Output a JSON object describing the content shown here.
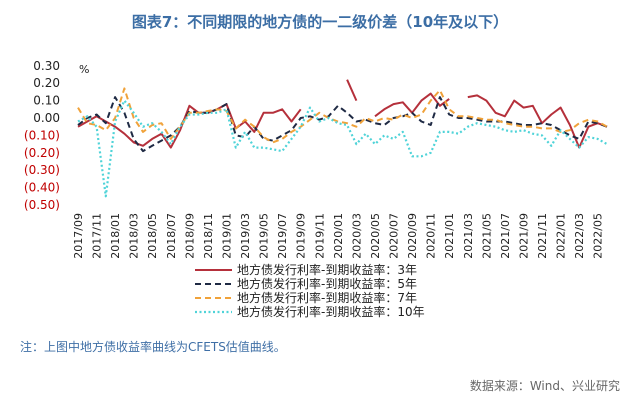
{
  "note": "注：上图中地方债收益率曲线为CFETS估值曲线。",
  "source": "数据来源：Wind、兴业研究",
  "colors": {
    "tick_positive": "#222222",
    "tick_negative": "#c00000"
  },
  "chart_data": {
    "type": "line",
    "title": "图表7：不同期限的地方债的一二级价差（10年及以下）",
    "unit": "%",
    "ylim": [
      -0.5,
      0.3
    ],
    "y_ticks": [
      0.3,
      0.2,
      0.1,
      0.0,
      -0.1,
      -0.2,
      -0.3,
      -0.4,
      -0.5
    ],
    "y_tick_labels": [
      "0.30",
      "0.20",
      "0.10",
      "0.00",
      "(0.10)",
      "(0.20)",
      "(0.30)",
      "(0.40)",
      "(0.50)"
    ],
    "grid": false,
    "legend": "bottom",
    "x": [
      "2017/09",
      "2017/10",
      "2017/11",
      "2017/12",
      "2018/01",
      "2018/02",
      "2018/03",
      "2018/04",
      "2018/05",
      "2018/06",
      "2018/07",
      "2018/08",
      "2018/09",
      "2018/10",
      "2018/11",
      "2018/12",
      "2019/01",
      "2019/02",
      "2019/03",
      "2019/04",
      "2019/05",
      "2019/06",
      "2019/07",
      "2019/08",
      "2019/09",
      "2019/10",
      "2019/11",
      "2019/12",
      "2020/01",
      "2020/02",
      "2020/03",
      "2020/04",
      "2020/05",
      "2020/06",
      "2020/07",
      "2020/08",
      "2020/09",
      "2020/10",
      "2020/11",
      "2020/12",
      "2021/01",
      "2021/02",
      "2021/03",
      "2021/04",
      "2021/05",
      "2021/06",
      "2021/07",
      "2021/08",
      "2021/09",
      "2021/10",
      "2021/11",
      "2021/12",
      "2022/01",
      "2022/02",
      "2022/03",
      "2022/04",
      "2022/05",
      "2022/06"
    ],
    "x_tick_labels": [
      "2017/09",
      "2017/11",
      "2018/01",
      "2018/03",
      "2018/05",
      "2018/07",
      "2018/09",
      "2018/11",
      "2019/01",
      "2019/03",
      "2019/05",
      "2019/07",
      "2019/09",
      "2019/11",
      "2020/01",
      "2020/03",
      "2020/05",
      "2020/07",
      "2020/09",
      "2020/11",
      "2021/01",
      "2021/03",
      "2021/05",
      "2021/07",
      "2021/09",
      "2021/11",
      "2022/01",
      "2022/03",
      "2022/05"
    ],
    "series": [
      {
        "name": "地方债发行利率-到期收益率：3年",
        "color": "#b5303b",
        "style": "solid",
        "values": [
          -0.05,
          -0.02,
          0.01,
          -0.02,
          -0.05,
          -0.09,
          -0.14,
          -0.16,
          -0.12,
          -0.09,
          -0.17,
          -0.07,
          0.07,
          0.03,
          0.03,
          0.05,
          0.08,
          -0.06,
          -0.02,
          -0.08,
          0.03,
          0.03,
          0.05,
          -0.02,
          0.05,
          null,
          null,
          null,
          null,
          0.22,
          0.1,
          null,
          0.01,
          0.05,
          0.08,
          0.09,
          0.03,
          0.1,
          0.14,
          0.07,
          0.11,
          null,
          0.12,
          0.13,
          0.1,
          0.03,
          0.01,
          0.1,
          0.06,
          0.07,
          -0.03,
          0.02,
          0.06,
          -0.04,
          -0.17,
          -0.05,
          -0.03,
          -0.05
        ]
      },
      {
        "name": "地方债发行利率-到期收益率：5年",
        "color": "#1f2a44",
        "style": "dashed",
        "values": [
          -0.04,
          0.0,
          0.02,
          -0.03,
          0.12,
          0.03,
          -0.12,
          -0.19,
          -0.16,
          -0.13,
          -0.1,
          -0.05,
          0.04,
          0.03,
          0.03,
          0.05,
          0.08,
          -0.1,
          -0.11,
          -0.05,
          -0.12,
          -0.13,
          -0.1,
          -0.07,
          0.0,
          0.01,
          -0.01,
          0.01,
          0.07,
          0.03,
          -0.02,
          -0.01,
          -0.03,
          -0.04,
          0.0,
          0.01,
          0.03,
          -0.02,
          -0.04,
          0.12,
          0.02,
          0.0,
          0.0,
          -0.01,
          -0.02,
          -0.02,
          -0.02,
          -0.03,
          -0.04,
          -0.04,
          -0.03,
          -0.04,
          -0.07,
          -0.1,
          -0.12,
          -0.02,
          -0.03,
          -0.05
        ]
      },
      {
        "name": "地方债发行利率-到期收益率：7年",
        "color": "#f0a23a",
        "style": "dashed",
        "values": [
          0.06,
          -0.03,
          -0.04,
          -0.07,
          0.0,
          0.17,
          0.0,
          -0.08,
          -0.04,
          -0.03,
          -0.12,
          -0.05,
          0.03,
          0.03,
          0.04,
          0.05,
          0.04,
          -0.06,
          -0.01,
          -0.05,
          -0.11,
          -0.14,
          -0.12,
          -0.08,
          -0.05,
          -0.01,
          0.03,
          0.0,
          -0.02,
          -0.03,
          -0.05,
          0.0,
          -0.02,
          0.0,
          -0.01,
          0.02,
          0.0,
          0.02,
          0.1,
          0.16,
          0.05,
          0.01,
          0.01,
          0.0,
          -0.01,
          -0.01,
          -0.03,
          -0.04,
          -0.05,
          -0.05,
          -0.06,
          -0.06,
          -0.08,
          -0.07,
          -0.03,
          -0.01,
          -0.02,
          -0.05
        ]
      },
      {
        "name": "地方债发行利率-到期收益率：10年",
        "color": "#4fd3d8",
        "style": "dotted",
        "values": [
          -0.02,
          0.01,
          -0.05,
          -0.45,
          -0.02,
          0.1,
          0.03,
          -0.05,
          -0.03,
          -0.08,
          -0.15,
          -0.05,
          0.02,
          0.02,
          0.03,
          0.03,
          0.05,
          -0.17,
          -0.08,
          -0.17,
          -0.17,
          -0.18,
          -0.19,
          -0.12,
          -0.05,
          0.06,
          -0.02,
          0.0,
          -0.03,
          -0.04,
          -0.15,
          -0.09,
          -0.15,
          -0.1,
          -0.12,
          -0.08,
          -0.22,
          -0.22,
          -0.2,
          -0.08,
          -0.08,
          -0.09,
          -0.05,
          -0.03,
          -0.04,
          -0.05,
          -0.07,
          -0.08,
          -0.07,
          -0.09,
          -0.1,
          -0.16,
          -0.07,
          -0.12,
          -0.17,
          -0.11,
          -0.12,
          -0.15
        ]
      }
    ]
  }
}
